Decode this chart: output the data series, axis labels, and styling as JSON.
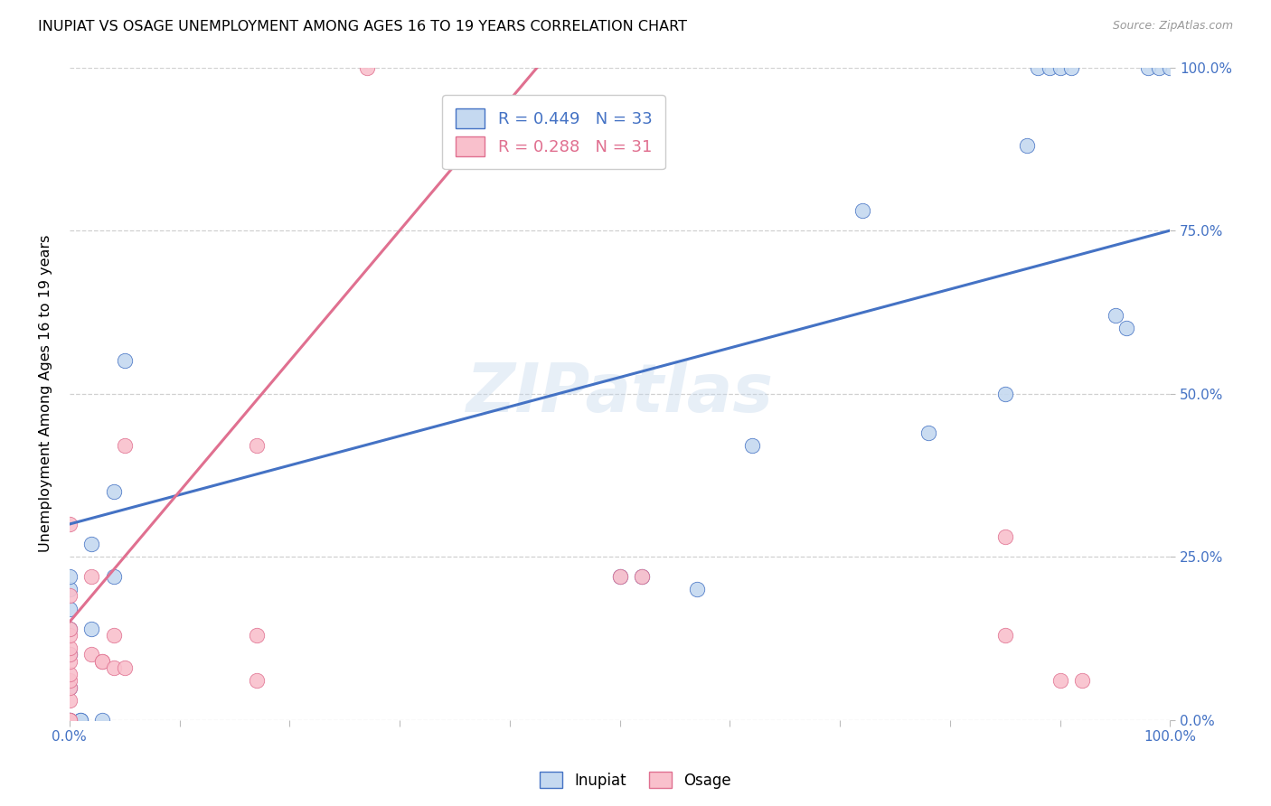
{
  "title": "INUPIAT VS OSAGE UNEMPLOYMENT AMONG AGES 16 TO 19 YEARS CORRELATION CHART",
  "source": "Source: ZipAtlas.com",
  "ylabel": "Unemployment Among Ages 16 to 19 years",
  "xlim": [
    0.0,
    1.0
  ],
  "ylim": [
    0.0,
    1.0
  ],
  "inupiat_R": 0.449,
  "inupiat_N": 33,
  "osage_R": 0.288,
  "osage_N": 31,
  "inupiat_color": "#c5d9f0",
  "osage_color": "#f9c0cc",
  "inupiat_line_color": "#4472c4",
  "osage_line_color": "#e07090",
  "background_color": "#ffffff",
  "grid_color": "#d0d0d0",
  "watermark": "ZIPatlas",
  "inupiat_points": [
    [
      0.0,
      0.0
    ],
    [
      0.0,
      0.0
    ],
    [
      0.0,
      0.05
    ],
    [
      0.0,
      0.1
    ],
    [
      0.0,
      0.14
    ],
    [
      0.0,
      0.17
    ],
    [
      0.0,
      0.2
    ],
    [
      0.0,
      0.22
    ],
    [
      0.01,
      0.0
    ],
    [
      0.01,
      0.0
    ],
    [
      0.02,
      0.14
    ],
    [
      0.02,
      0.27
    ],
    [
      0.03,
      0.0
    ],
    [
      0.04,
      0.22
    ],
    [
      0.04,
      0.35
    ],
    [
      0.05,
      0.55
    ],
    [
      0.5,
      0.22
    ],
    [
      0.52,
      0.22
    ],
    [
      0.57,
      0.2
    ],
    [
      0.62,
      0.42
    ],
    [
      0.72,
      0.78
    ],
    [
      0.78,
      0.44
    ],
    [
      0.85,
      0.5
    ],
    [
      0.87,
      0.88
    ],
    [
      0.88,
      1.0
    ],
    [
      0.89,
      1.0
    ],
    [
      0.9,
      1.0
    ],
    [
      0.91,
      1.0
    ],
    [
      0.95,
      0.62
    ],
    [
      0.96,
      0.6
    ],
    [
      0.98,
      1.0
    ],
    [
      0.99,
      1.0
    ],
    [
      1.0,
      1.0
    ]
  ],
  "osage_points": [
    [
      0.0,
      0.0
    ],
    [
      0.0,
      0.0
    ],
    [
      0.0,
      0.03
    ],
    [
      0.0,
      0.05
    ],
    [
      0.0,
      0.06
    ],
    [
      0.0,
      0.07
    ],
    [
      0.0,
      0.09
    ],
    [
      0.0,
      0.1
    ],
    [
      0.0,
      0.11
    ],
    [
      0.0,
      0.13
    ],
    [
      0.0,
      0.14
    ],
    [
      0.0,
      0.19
    ],
    [
      0.0,
      0.3
    ],
    [
      0.02,
      0.1
    ],
    [
      0.02,
      0.22
    ],
    [
      0.03,
      0.09
    ],
    [
      0.03,
      0.09
    ],
    [
      0.04,
      0.08
    ],
    [
      0.04,
      0.13
    ],
    [
      0.05,
      0.42
    ],
    [
      0.17,
      0.42
    ],
    [
      0.27,
      1.0
    ],
    [
      0.5,
      0.22
    ],
    [
      0.52,
      0.22
    ],
    [
      0.85,
      0.28
    ],
    [
      0.85,
      0.13
    ],
    [
      0.9,
      0.06
    ],
    [
      0.92,
      0.06
    ],
    [
      0.17,
      0.06
    ],
    [
      0.17,
      0.13
    ],
    [
      0.05,
      0.08
    ]
  ]
}
